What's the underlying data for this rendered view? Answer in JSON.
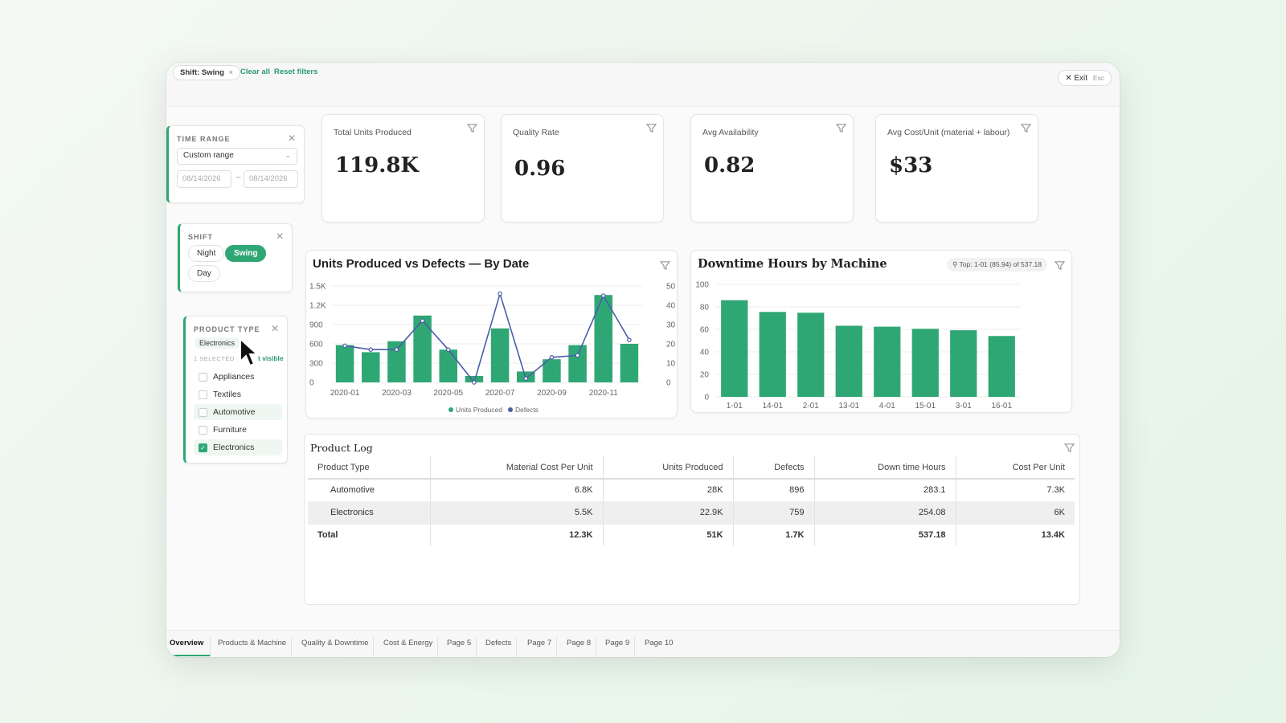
{
  "filterbar": {
    "chip_label": "Shift: Swing",
    "chip_close": "×",
    "clear_all": "Clear all",
    "reset_filters": "Reset filters",
    "exit_label": "Exit",
    "exit_key": "Esc"
  },
  "time_range": {
    "title": "TIME RANGE",
    "select_value": "Custom range",
    "start_date": "08/14/2026",
    "end_date": "08/14/2026",
    "separator": "–"
  },
  "shift": {
    "title": "SHIFT",
    "options": [
      "Night",
      "Swing",
      "Day"
    ],
    "selected": "Swing"
  },
  "product_type": {
    "title": "PRODUCT TYPE",
    "tag": "Electronics",
    "selected_count": "1 SELECTED",
    "visible_link": "t visible",
    "options": [
      {
        "label": "Appliances",
        "checked": false
      },
      {
        "label": "Textiles",
        "checked": false
      },
      {
        "label": "Automotive",
        "checked": false
      },
      {
        "label": "Furniture",
        "checked": false
      },
      {
        "label": "Electronics",
        "checked": true
      }
    ]
  },
  "kpis": [
    {
      "label": "Total Units Produced",
      "value": "119.8K"
    },
    {
      "label": "Quality Rate",
      "value": "0.96"
    },
    {
      "label": "Avg Availability",
      "value": "0.82"
    },
    {
      "label": "Avg Cost/Unit (material + labour)",
      "value": "$33"
    }
  ],
  "colors": {
    "accent": "#2fa774",
    "bar": "#2fa774",
    "line": "#4a5fa8"
  },
  "chart_data": [
    {
      "type": "bar",
      "title": "Units Produced vs Defects — By Date",
      "x_tick_labels": [
        "2020-01",
        "2020-03",
        "2020-05",
        "2020-07",
        "2020-09",
        "2020-11"
      ],
      "x": [
        "2020-01",
        "2020-02",
        "2020-03",
        "2020-04",
        "2020-05",
        "2020-06",
        "2020-07",
        "2020-08",
        "2020-09",
        "2020-10",
        "2020-11",
        "2020-12"
      ],
      "series": [
        {
          "name": "Units Produced",
          "type": "bar",
          "axis": "left",
          "values": [
            580,
            470,
            640,
            1040,
            510,
            100,
            840,
            170,
            360,
            580,
            1360,
            600
          ]
        },
        {
          "name": "Defects",
          "type": "line",
          "axis": "right",
          "values": [
            19,
            17,
            17,
            32,
            17,
            0,
            46,
            2,
            13,
            14,
            45,
            22
          ]
        }
      ],
      "yleft_ticks": [
        "0",
        "300",
        "600",
        "900",
        "1.2K",
        "1.5K"
      ],
      "yleft_lim": [
        0,
        1500
      ],
      "yright_ticks": [
        "0",
        "10",
        "20",
        "30",
        "40",
        "50"
      ],
      "yright_lim": [
        0,
        50
      ],
      "legend": [
        "Units Produced",
        "Defects"
      ],
      "legend_position": "bottom",
      "grid": true
    },
    {
      "type": "bar",
      "title": "Downtime Hours by Machine",
      "badge": "Top: 1-01 (85.94) of 537.18",
      "categories": [
        "1-01",
        "14-01",
        "2-01",
        "13-01",
        "4-01",
        "15-01",
        "3-01",
        "16-01"
      ],
      "values": [
        85.94,
        75.5,
        74.8,
        63.2,
        62.4,
        60.5,
        59.2,
        54.1
      ],
      "y_ticks": [
        "0",
        "20",
        "40",
        "60",
        "80",
        "100"
      ],
      "ylim": [
        0,
        100
      ],
      "grid": true
    }
  ],
  "table": {
    "title": "Product Log",
    "columns": [
      "Product Type",
      "Material Cost Per Unit",
      "Units Produced",
      "Defects",
      "Down time Hours",
      "Cost Per Unit"
    ],
    "rows": [
      [
        "Automotive",
        "6.8K",
        "28K",
        "896",
        "283.1",
        "7.3K"
      ],
      [
        "Electronics",
        "5.5K",
        "22.9K",
        "759",
        "254.08",
        "6K"
      ]
    ],
    "total": [
      "Total",
      "12.3K",
      "51K",
      "1.7K",
      "537.18",
      "13.4K"
    ]
  },
  "tabs": [
    "Overview",
    "Products & Machine",
    "Quality & Downtime",
    "Cost & Energy",
    "Page 5",
    "Defects",
    "Page 7",
    "Page 8",
    "Page 9",
    "Page 10"
  ]
}
